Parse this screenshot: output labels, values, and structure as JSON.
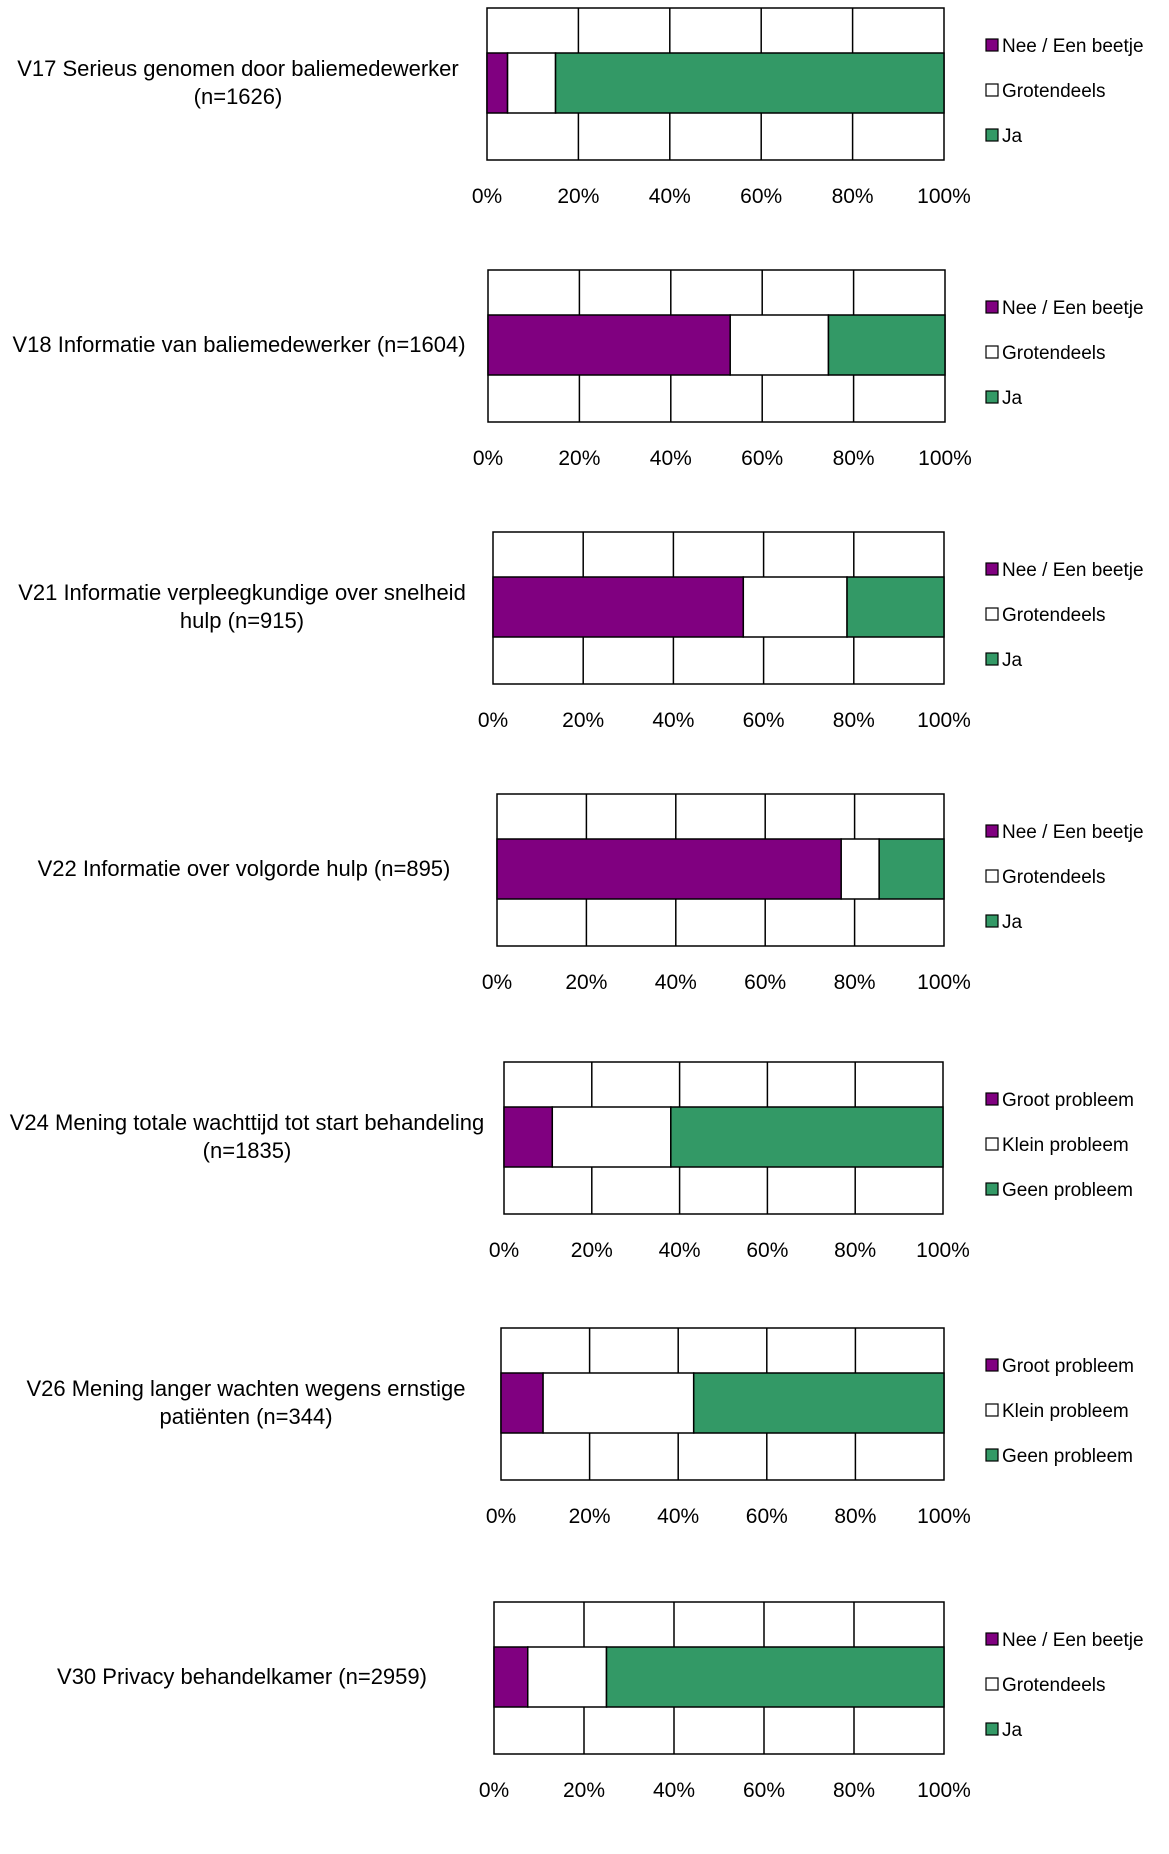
{
  "colors": {
    "purple": "#800080",
    "white": "#ffffff",
    "green": "#339966",
    "stroke": "#000000"
  },
  "chart_data": [
    {
      "type": "bar",
      "orientation": "horizontal",
      "stacked": true,
      "category": "V17 Serieus genomen door baliemedewerker (n=1626)",
      "series": [
        {
          "name": "Nee / Een beetje",
          "value": 4.5,
          "color": "#800080"
        },
        {
          "name": "Grotendeels",
          "value": 10.5,
          "color": "#ffffff"
        },
        {
          "name": "Ja",
          "value": 85,
          "color": "#339966"
        }
      ],
      "xlim": [
        0,
        100
      ],
      "ticks": [
        "0%",
        "20%",
        "40%",
        "60%",
        "80%",
        "100%"
      ],
      "legend_position": "right",
      "grid": true
    },
    {
      "type": "bar",
      "orientation": "horizontal",
      "stacked": true,
      "category": "V18 Informatie van baliemedewerker (n=1604)",
      "series": [
        {
          "name": "Nee / Een beetje",
          "value": 53,
          "color": "#800080"
        },
        {
          "name": "Grotendeels",
          "value": 21.5,
          "color": "#ffffff"
        },
        {
          "name": "Ja",
          "value": 25.5,
          "color": "#339966"
        }
      ],
      "xlim": [
        0,
        100
      ],
      "ticks": [
        "0%",
        "20%",
        "40%",
        "60%",
        "80%",
        "100%"
      ],
      "legend_position": "right",
      "grid": true
    },
    {
      "type": "bar",
      "orientation": "horizontal",
      "stacked": true,
      "category": "V21 Informatie verpleegkundige over snelheid hulp (n=915)",
      "series": [
        {
          "name": "Nee / Een beetje",
          "value": 55.5,
          "color": "#800080"
        },
        {
          "name": "Grotendeels",
          "value": 23,
          "color": "#ffffff"
        },
        {
          "name": "Ja",
          "value": 21.5,
          "color": "#339966"
        }
      ],
      "xlim": [
        0,
        100
      ],
      "ticks": [
        "0%",
        "20%",
        "40%",
        "60%",
        "80%",
        "100%"
      ],
      "legend_position": "right",
      "grid": true
    },
    {
      "type": "bar",
      "orientation": "horizontal",
      "stacked": true,
      "category": "V22 Informatie over volgorde hulp (n=895)",
      "series": [
        {
          "name": "Nee / Een beetje",
          "value": 77,
          "color": "#800080"
        },
        {
          "name": "Grotendeels",
          "value": 8.5,
          "color": "#ffffff"
        },
        {
          "name": "Ja",
          "value": 14.5,
          "color": "#339966"
        }
      ],
      "xlim": [
        0,
        100
      ],
      "ticks": [
        "0%",
        "20%",
        "40%",
        "60%",
        "80%",
        "100%"
      ],
      "legend_position": "right",
      "grid": true
    },
    {
      "type": "bar",
      "orientation": "horizontal",
      "stacked": true,
      "category": "V24 Mening totale wachttijd tot start behandeling (n=1835)",
      "series": [
        {
          "name": "Groot probleem",
          "value": 11,
          "color": "#800080"
        },
        {
          "name": "Klein probleem",
          "value": 27,
          "color": "#ffffff"
        },
        {
          "name": "Geen probleem",
          "value": 62,
          "color": "#339966"
        }
      ],
      "xlim": [
        0,
        100
      ],
      "ticks": [
        "0%",
        "20%",
        "40%",
        "60%",
        "80%",
        "100%"
      ],
      "legend_position": "right",
      "grid": true
    },
    {
      "type": "bar",
      "orientation": "horizontal",
      "stacked": true,
      "category": "V26 Mening langer wachten wegens ernstige patiënten (n=344)",
      "series": [
        {
          "name": "Groot probleem",
          "value": 9.5,
          "color": "#800080"
        },
        {
          "name": "Klein probleem",
          "value": 34,
          "color": "#ffffff"
        },
        {
          "name": "Geen probleem",
          "value": 56.5,
          "color": "#339966"
        }
      ],
      "xlim": [
        0,
        100
      ],
      "ticks": [
        "0%",
        "20%",
        "40%",
        "60%",
        "80%",
        "100%"
      ],
      "legend_position": "right",
      "grid": true
    },
    {
      "type": "bar",
      "orientation": "horizontal",
      "stacked": true,
      "category": "V30 Privacy behandelkamer (n=2959)",
      "series": [
        {
          "name": "Nee / Een beetje",
          "value": 7.5,
          "color": "#800080"
        },
        {
          "name": "Grotendeels",
          "value": 17.5,
          "color": "#ffffff"
        },
        {
          "name": "Ja",
          "value": 75,
          "color": "#339966"
        }
      ],
      "xlim": [
        0,
        100
      ],
      "ticks": [
        "0%",
        "20%",
        "40%",
        "60%",
        "80%",
        "100%"
      ],
      "legend_position": "right",
      "grid": true
    }
  ]
}
